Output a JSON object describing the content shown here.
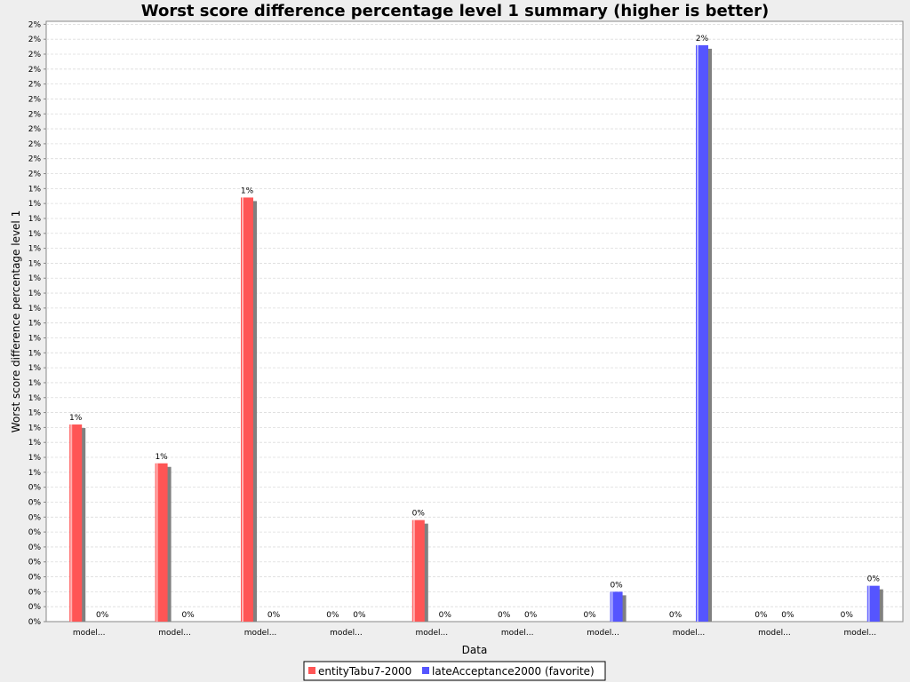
{
  "chart_data": {
    "type": "bar",
    "title": "Worst score difference percentage level 1 summary (higher is better)",
    "xlabel": "Data",
    "ylabel": "Worst score difference percentage level 1",
    "categories": [
      "model...",
      "model...",
      "model...",
      "model...",
      "model...",
      "model...",
      "model...",
      "model...",
      "model...",
      "model..."
    ],
    "series": [
      {
        "name": "entityTabu7-2000",
        "color": "#ff5555",
        "values": [
          0.0066,
          0.0053,
          0.0142,
          null,
          0.0034,
          null,
          null,
          null,
          null,
          null
        ],
        "labels": [
          "1%",
          "1%",
          "1%",
          "0%",
          "0%",
          "0%",
          "0%",
          "0%",
          "0%",
          "0%"
        ]
      },
      {
        "name": "lateAcceptance2000 (favorite)",
        "color": "#5555ff",
        "values": [
          null,
          null,
          null,
          null,
          null,
          null,
          0.001,
          0.0193,
          null,
          0.0012
        ],
        "labels": [
          "0%",
          "0%",
          "0%",
          "0%",
          "0%",
          "0%",
          "0%",
          "2%",
          "0%",
          "0%"
        ]
      }
    ],
    "y_tick_labels": [
      "0%",
      "0%",
      "0%",
      "0%",
      "0%",
      "0%",
      "0%",
      "0%",
      "0%",
      "0%",
      "1%",
      "1%",
      "1%",
      "1%",
      "1%",
      "1%",
      "1%",
      "1%",
      "1%",
      "1%",
      "1%",
      "1%",
      "1%",
      "1%",
      "1%",
      "1%",
      "1%",
      "1%",
      "1%",
      "1%",
      "2%",
      "2%",
      "2%",
      "2%",
      "2%",
      "2%",
      "2%",
      "2%",
      "2%",
      "2%",
      "2%"
    ],
    "y_tick_step": 0.0005,
    "ylim": [
      0,
      0.0201
    ],
    "grid": true,
    "legend_position": "bottom"
  }
}
